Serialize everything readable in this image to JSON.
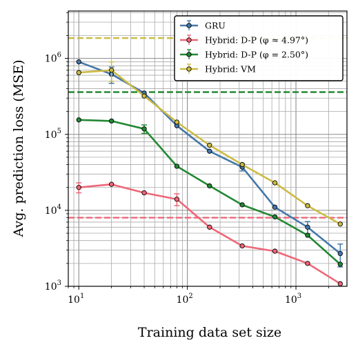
{
  "chart_data": {
    "type": "line",
    "xlabel": "Training data set size",
    "ylabel": "Avg. prediction loss (MSE)",
    "xscale": "log",
    "yscale": "log",
    "xlim": [
      8,
      2950
    ],
    "ylim": [
      1000,
      4200000
    ],
    "x_ticks": [
      {
        "value": 10,
        "base": "10",
        "exp": "1"
      },
      {
        "value": 100,
        "base": "10",
        "exp": "2"
      },
      {
        "value": 1000,
        "base": "10",
        "exp": "3"
      }
    ],
    "y_ticks": [
      {
        "value": 1000,
        "base": "10",
        "exp": "3"
      },
      {
        "value": 10000,
        "base": "10",
        "exp": "4"
      },
      {
        "value": 100000,
        "base": "10",
        "exp": "5"
      },
      {
        "value": 1000000,
        "base": "10",
        "exp": "6"
      }
    ],
    "grid": true,
    "legend_position": "top-right",
    "series": [
      {
        "name": "GRU",
        "color": "#4477aa",
        "x": [
          10,
          20,
          40,
          80,
          160,
          320,
          640,
          1280,
          2560
        ],
        "y": [
          900000,
          620000,
          350000,
          130000,
          60000,
          37000,
          11000,
          6000,
          2700
        ],
        "err": [
          0,
          150000,
          0,
          0,
          0,
          4000,
          0,
          1100,
          900
        ]
      },
      {
        "name": "Hybrid: D-P (φ ≈ 4.97°)",
        "color": "#ee6677",
        "x": [
          10,
          20,
          40,
          80,
          160,
          320,
          640,
          1280,
          2560
        ],
        "y": [
          20000,
          22000,
          17000,
          14000,
          6000,
          3400,
          2900,
          2000,
          1080
        ],
        "err": [
          3000,
          0,
          0,
          2500,
          0,
          0,
          0,
          0,
          0
        ]
      },
      {
        "name": "Hybrid: D-P (φ = 2.50°)",
        "color": "#228833",
        "x": [
          10,
          20,
          40,
          80,
          160,
          320,
          640,
          1280,
          2560
        ],
        "y": [
          155000,
          150000,
          118000,
          38000,
          21000,
          11800,
          8200,
          4700,
          1950
        ],
        "err": [
          0,
          0,
          15000,
          0,
          0,
          0,
          0,
          0,
          0
        ]
      },
      {
        "name": "Hybrid: VM",
        "color": "#ccbb44",
        "x": [
          10,
          20,
          40,
          80,
          160,
          320,
          640,
          1280,
          2560
        ],
        "y": [
          650000,
          700000,
          320000,
          145000,
          72000,
          40000,
          23000,
          11500,
          6600
        ],
        "err": [
          0,
          200000,
          0,
          0,
          0,
          0,
          0,
          0,
          0
        ]
      }
    ],
    "hlines": [
      {
        "y": 1850000,
        "color": "#ccbb44",
        "style": "dashed"
      },
      {
        "y": 360000,
        "color": "#228833",
        "style": "dashed"
      },
      {
        "y": 8000,
        "color": "#ee6677",
        "style": "dashed"
      }
    ]
  }
}
